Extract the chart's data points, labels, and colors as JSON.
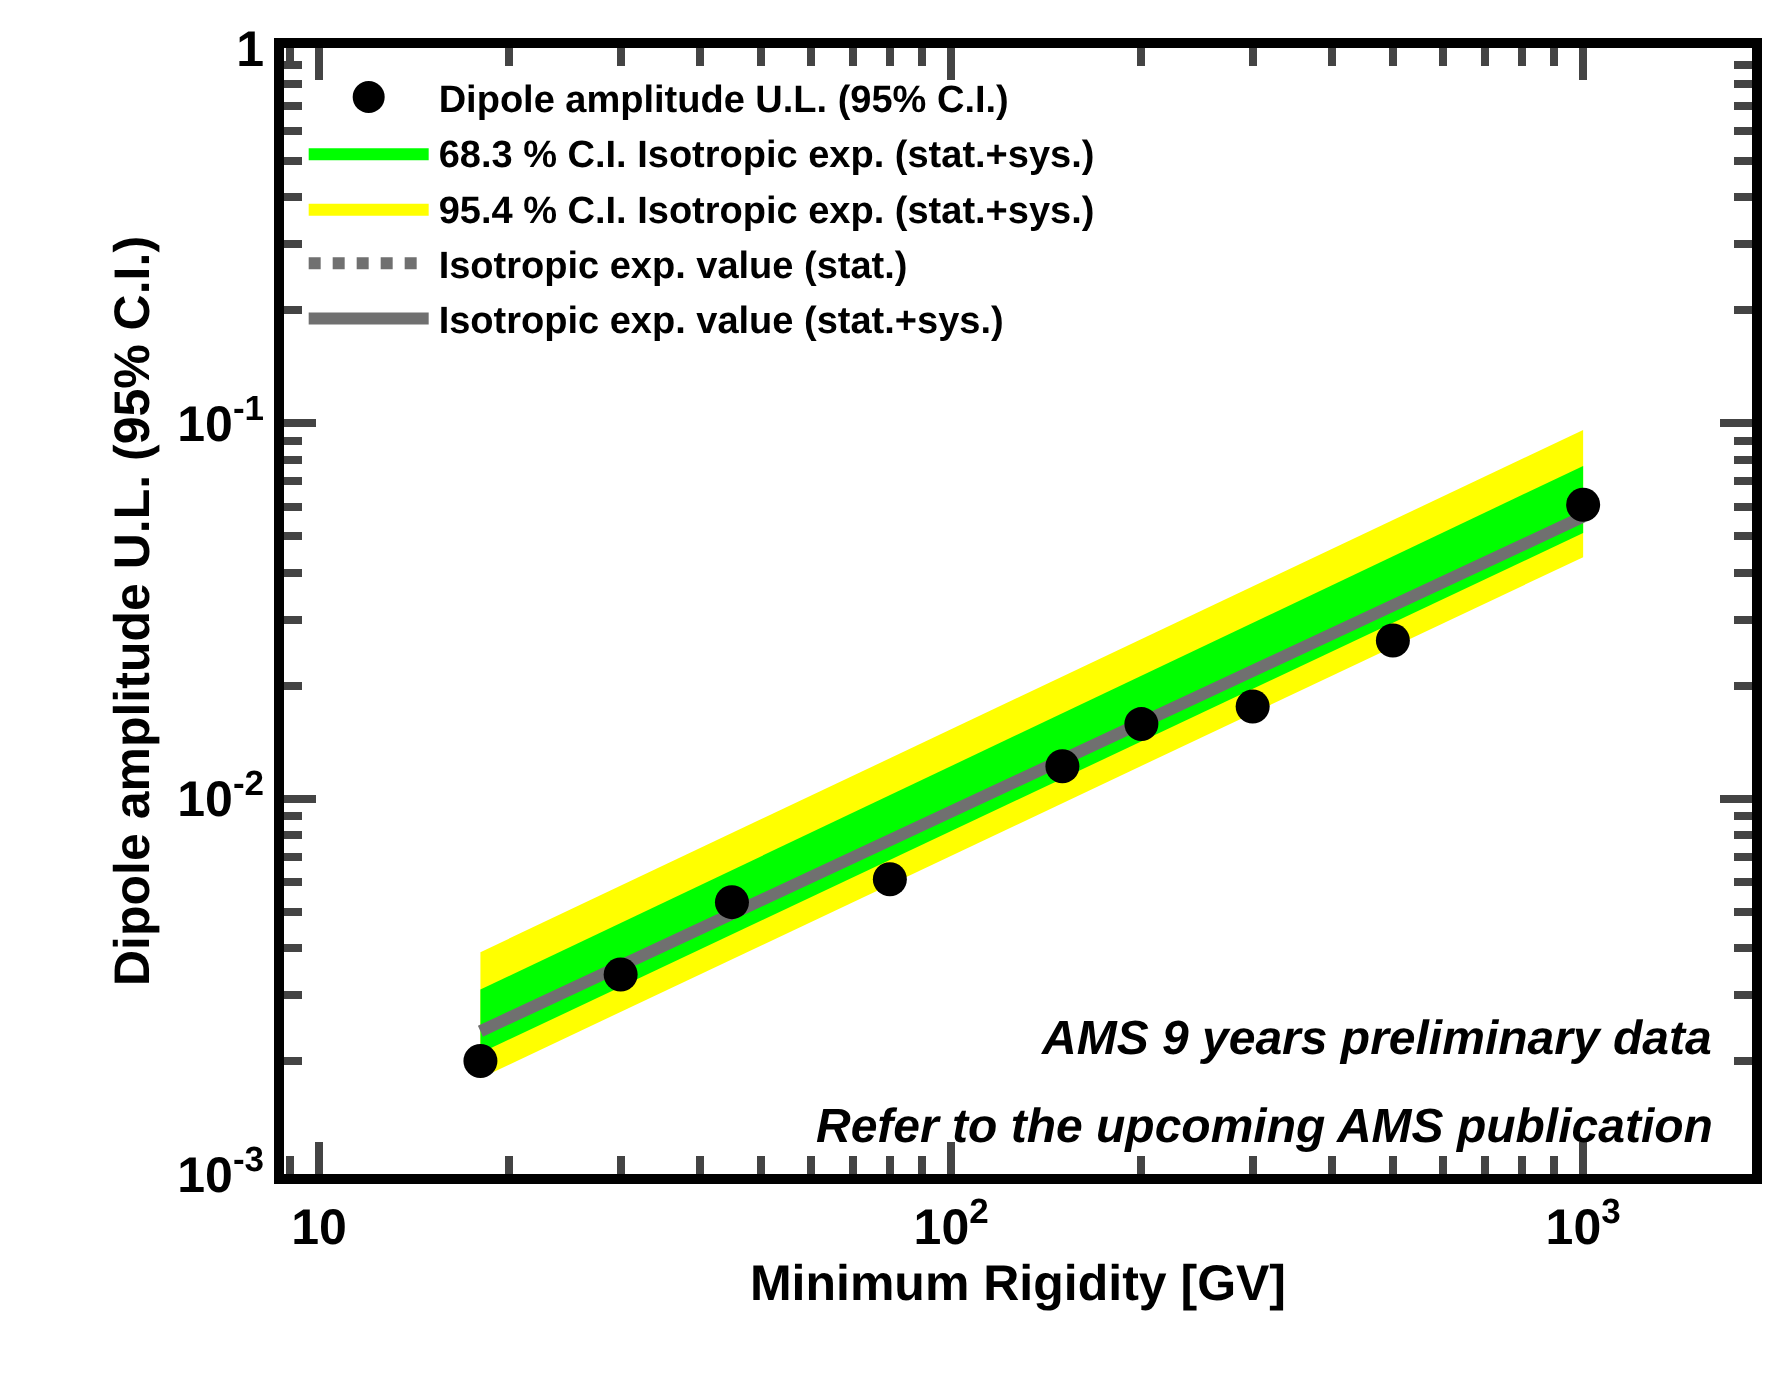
{
  "chart_data": {
    "type": "scatter",
    "xlabel": "Minimum Rigidity [GV]",
    "ylabel": "Dipole amplitude U.L. (95% C.I.)",
    "log": "xy",
    "legend": "top left",
    "xlim": [
      8.8,
      1850
    ],
    "ylim": [
      0.001,
      1
    ],
    "xticks": [
      10,
      {
        "value": 100,
        "label": "10$^{2}$"
      },
      {
        "value": 1000,
        "label": "10$^{3}$"
      }
    ],
    "yticks": [
      {
        "value": 0.001,
        "label": "10$^{-3}$"
      },
      {
        "value": 0.01,
        "label": "10$^{-2}$"
      },
      {
        "value": 0.1,
        "label": "10$^{-1}$"
      },
      1
    ],
    "x": [
      18,
      30,
      45,
      80,
      150,
      200,
      300,
      500,
      1000
    ],
    "series": [
      {
        "name": "Dipole amplitude U.L. (95% C.I.)",
        "marker": "circle",
        "color": "#000000",
        "values": [
          0.002,
          0.0034,
          0.0053,
          0.0061,
          0.0122,
          0.0158,
          0.0176,
          0.0264,
          0.0607
        ]
      },
      {
        "name": "68.3 % C.I. Isotropic exp. (stat.+sys.)",
        "type": "area",
        "color": "#00ff00",
        "values": [
          null,
          null,
          null,
          null,
          null,
          null,
          null,
          null,
          null
        ],
        "lower": [
          0.0021,
          null,
          null,
          null,
          null,
          null,
          null,
          null,
          0.051
        ],
        "upper": [
          0.0031,
          null,
          null,
          null,
          null,
          null,
          null,
          null,
          0.077
        ]
      },
      {
        "name": "95.4 % C.I. Isotropic exp. (stat.+sys.)",
        "type": "area",
        "color": "#ffff00",
        "values": [
          null,
          null,
          null,
          null,
          null,
          null,
          null,
          null,
          null
        ],
        "lower": [
          0.0018,
          null,
          null,
          null,
          null,
          null,
          null,
          null,
          0.044
        ],
        "upper": [
          0.0039,
          null,
          null,
          null,
          null,
          null,
          null,
          null,
          0.096
        ]
      },
      {
        "name": "Isotropic exp. value (stat.)",
        "type": "line",
        "line_style": "dotted",
        "color": "#707070",
        "values": [
          null,
          null,
          null,
          null,
          null,
          null,
          null,
          null,
          null
        ]
      },
      {
        "name": "Isotropic exp. value (stat.+sys.)",
        "type": "line",
        "line_style": "solid",
        "color": "#707070",
        "values": [
          0.0024,
          null,
          null,
          null,
          null,
          null,
          null,
          null,
          0.0564
        ]
      }
    ],
    "annotations": [
      "AMS 9 years preliminary data",
      "Refer to the upcoming AMS publication"
    ]
  }
}
